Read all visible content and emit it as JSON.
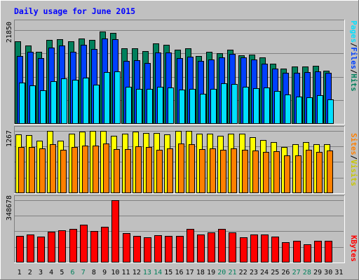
{
  "title": "Daily usage for June 2015",
  "colors": {
    "background": "#c0c0c0",
    "title": "#0000ff",
    "hits": "#00805c",
    "files": "#0040ff",
    "pages": "#00e0ff",
    "visits": "#ffff00",
    "sites": "#ff8000",
    "kbytes": "#ff0000",
    "day_black": "#000000",
    "day_weekend": "#00805c"
  },
  "right_labels": {
    "hits": "Hits",
    "files": "Files",
    "pages": "Pages",
    "visits": "Visits",
    "sites": "Sites",
    "kbytes": "KBytes",
    "separator": "/"
  },
  "chart_data": [
    {
      "type": "bar",
      "panel": "hits-files-pages",
      "title": "Daily usage for June 2015",
      "y_max_label": "21850",
      "ylim": [
        0,
        21850
      ],
      "grid": true,
      "categories": [
        "1",
        "2",
        "3",
        "4",
        "5",
        "6",
        "7",
        "8",
        "9",
        "10",
        "11",
        "12",
        "13",
        "14",
        "15",
        "16",
        "17",
        "18",
        "19",
        "20",
        "21",
        "22",
        "23",
        "24",
        "25",
        "26",
        "27",
        "28",
        "29",
        "30",
        "31"
      ],
      "series": [
        {
          "name": "Hits",
          "values": [
            19240,
            18190,
            16750,
            19620,
            19720,
            19150,
            19920,
            19490,
            21430,
            21240,
            17630,
            17630,
            16950,
            18670,
            18480,
            17200,
            17520,
            15840,
            16750,
            16460,
            17200,
            15940,
            16160,
            15550,
            13940,
            12800,
            13420,
            13420,
            13520,
            12320,
            0
          ]
        },
        {
          "name": "Files",
          "values": [
            15810,
            16760,
            15360,
            17800,
            18170,
            16740,
            18380,
            17410,
            19920,
            19690,
            14720,
            14800,
            14120,
            16690,
            16590,
            15270,
            15650,
            14700,
            15040,
            15430,
            16370,
            15420,
            14950,
            14000,
            12830,
            11860,
            11930,
            12000,
            12250,
            11860,
            0
          ]
        },
        {
          "name": "Pages",
          "values": [
            9640,
            9040,
            7870,
            10010,
            10530,
            10310,
            10760,
            9180,
            12030,
            12220,
            8690,
            8110,
            8100,
            8560,
            8490,
            7970,
            8100,
            6940,
            8150,
            9490,
            9250,
            8620,
            8270,
            8430,
            7590,
            6900,
            6360,
            6200,
            6750,
            5690,
            0
          ]
        }
      ]
    },
    {
      "type": "bar",
      "panel": "visits-sites",
      "y_max_label": "1267",
      "ylim": [
        0,
        1267
      ],
      "grid": true,
      "categories": [
        "1",
        "2",
        "3",
        "4",
        "5",
        "6",
        "7",
        "8",
        "9",
        "10",
        "11",
        "12",
        "13",
        "14",
        "15",
        "16",
        "17",
        "18",
        "19",
        "20",
        "21",
        "22",
        "23",
        "24",
        "25",
        "26",
        "27",
        "28",
        "29",
        "30",
        "31"
      ],
      "series": [
        {
          "name": "Visits",
          "values": [
            1190,
            1180,
            1060,
            1270,
            1070,
            1210,
            1250,
            1260,
            1270,
            1160,
            1200,
            1250,
            1220,
            1220,
            1190,
            1270,
            1270,
            1210,
            1210,
            1160,
            1200,
            1210,
            1140,
            1080,
            1040,
            930,
            1000,
            1040,
            990,
            990,
            0
          ]
        },
        {
          "name": "Sites",
          "values": [
            940,
            940,
            910,
            990,
            880,
            930,
            970,
            960,
            1010,
            890,
            900,
            950,
            930,
            880,
            910,
            1010,
            1000,
            900,
            910,
            880,
            910,
            880,
            870,
            840,
            850,
            760,
            770,
            880,
            840,
            860,
            0
          ]
        }
      ]
    },
    {
      "type": "bar",
      "panel": "kbytes",
      "y_max_label": "348678",
      "ylim": [
        0,
        348678
      ],
      "grid": true,
      "categories": [
        "1",
        "2",
        "3",
        "4",
        "5",
        "6",
        "7",
        "8",
        "9",
        "10",
        "11",
        "12",
        "13",
        "14",
        "15",
        "16",
        "17",
        "18",
        "19",
        "20",
        "21",
        "22",
        "23",
        "24",
        "25",
        "26",
        "27",
        "28",
        "29",
        "30",
        "31"
      ],
      "series": [
        {
          "name": "KBytes",
          "values": [
            150000,
            158000,
            145000,
            170000,
            180000,
            188000,
            210000,
            176000,
            200000,
            348678,
            164000,
            150000,
            140000,
            152000,
            150000,
            150000,
            188000,
            158000,
            168000,
            186000,
            166000,
            140000,
            158000,
            155000,
            146000,
            115000,
            120000,
            100000,
            120000,
            123000,
            0
          ]
        }
      ]
    }
  ]
}
